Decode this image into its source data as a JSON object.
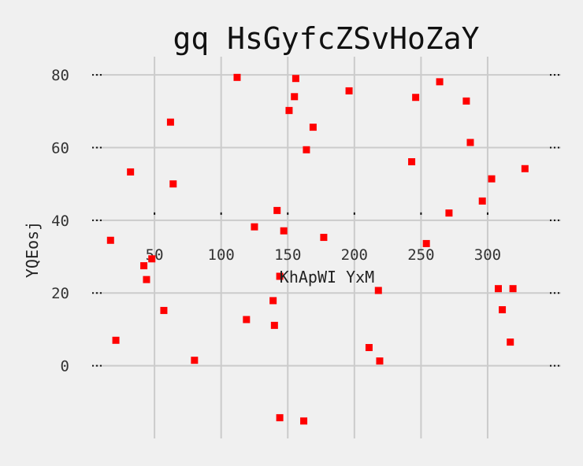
{
  "chart_data": {
    "type": "scatter",
    "title": "gq HsGyfcZSvHoZaY",
    "xlabel": "KhApWI YxM",
    "ylabel": "YQEosj",
    "xlim": [
      5,
      355
    ],
    "ylim": [
      -20,
      85
    ],
    "x_ticks": [
      50,
      100,
      150,
      200,
      250,
      300
    ],
    "y_ticks": [
      0,
      20,
      40,
      60,
      80
    ],
    "grid": true,
    "marker_color": "#ff0000",
    "marker_shape": "square",
    "points": [
      {
        "x": 17,
        "y": 34.5
      },
      {
        "x": 21,
        "y": 7
      },
      {
        "x": 32,
        "y": 53.3
      },
      {
        "x": 42,
        "y": 27.5
      },
      {
        "x": 44,
        "y": 23.7
      },
      {
        "x": 48,
        "y": 29.4
      },
      {
        "x": 57,
        "y": 15.2
      },
      {
        "x": 62,
        "y": 67
      },
      {
        "x": 64,
        "y": 50
      },
      {
        "x": 80,
        "y": 1.5
      },
      {
        "x": 112,
        "y": 79.3
      },
      {
        "x": 119,
        "y": 12.7
      },
      {
        "x": 125,
        "y": 38.2
      },
      {
        "x": 139,
        "y": 17.9
      },
      {
        "x": 140,
        "y": 11.1
      },
      {
        "x": 142,
        "y": 42.7
      },
      {
        "x": 144,
        "y": -14.3
      },
      {
        "x": 144,
        "y": 24.6
      },
      {
        "x": 147,
        "y": 37.1
      },
      {
        "x": 151,
        "y": 70.2
      },
      {
        "x": 155,
        "y": 74
      },
      {
        "x": 156,
        "y": 79
      },
      {
        "x": 162,
        "y": -15.2
      },
      {
        "x": 164,
        "y": 59.4
      },
      {
        "x": 169,
        "y": 65.6
      },
      {
        "x": 177,
        "y": 35.3
      },
      {
        "x": 196,
        "y": 75.6
      },
      {
        "x": 211,
        "y": 5
      },
      {
        "x": 218,
        "y": 20.7
      },
      {
        "x": 219,
        "y": 1.3
      },
      {
        "x": 243,
        "y": 56.1
      },
      {
        "x": 246,
        "y": 73.8
      },
      {
        "x": 254,
        "y": 33.6
      },
      {
        "x": 264,
        "y": 78.1
      },
      {
        "x": 271,
        "y": 42
      },
      {
        "x": 284,
        "y": 72.8
      },
      {
        "x": 287,
        "y": 61.4
      },
      {
        "x": 296,
        "y": 45.3
      },
      {
        "x": 303,
        "y": 51.4
      },
      {
        "x": 308,
        "y": 21.2
      },
      {
        "x": 311,
        "y": 15.4
      },
      {
        "x": 317,
        "y": 6.5
      },
      {
        "x": 319,
        "y": 21.2
      },
      {
        "x": 328,
        "y": 54.2
      }
    ]
  }
}
